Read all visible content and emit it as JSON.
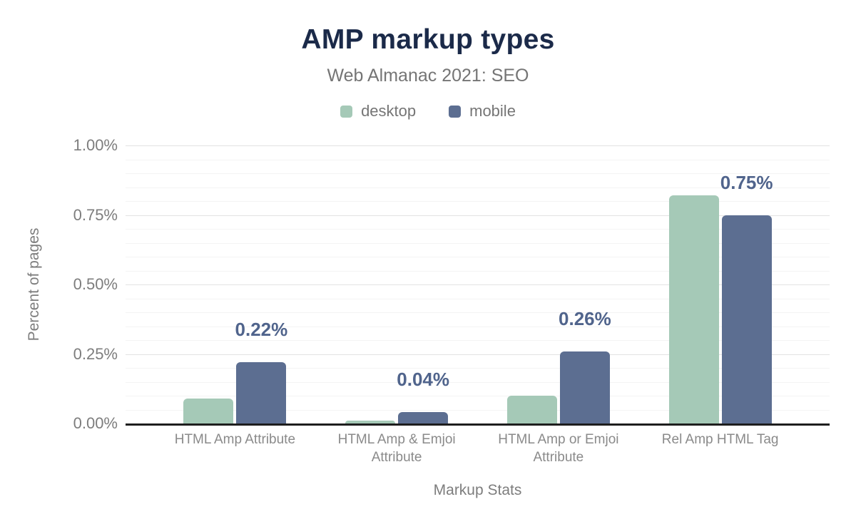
{
  "header": {
    "title": "AMP markup types",
    "subtitle": "Web Almanac 2021: SEO"
  },
  "legend": [
    {
      "label": "desktop",
      "color": "#a5c9b7"
    },
    {
      "label": "mobile",
      "color": "#5c6e91"
    }
  ],
  "colors": {
    "title": "#1b2a49",
    "data_label": "#50648c",
    "axis_line": "#1e1e1e",
    "desktop_bar": "#a5c9b7",
    "mobile_bar": "#5c6e91"
  },
  "chart_data": {
    "type": "bar",
    "title": "AMP markup types",
    "subtitle": "Web Almanac 2021: SEO",
    "categories": [
      "HTML Amp Attribute",
      "HTML Amp & Emjoi Attribute",
      "HTML Amp or Emjoi Attribute",
      "Rel Amp HTML Tag"
    ],
    "series": [
      {
        "name": "desktop",
        "color": "#a5c9b7",
        "values": [
          0.09,
          0.01,
          0.1,
          0.82
        ]
      },
      {
        "name": "mobile",
        "color": "#5c6e91",
        "values": [
          0.22,
          0.04,
          0.26,
          0.75
        ],
        "data_labels": [
          "0.22%",
          "0.04%",
          "0.26%",
          "0.75%"
        ]
      }
    ],
    "xlabel": "Markup Stats",
    "ylabel": "Percent of pages",
    "ylim": [
      0,
      1.0
    ],
    "yticks": [
      {
        "value": 0.0,
        "label": "0.00%"
      },
      {
        "value": 0.25,
        "label": "0.25%"
      },
      {
        "value": 0.5,
        "label": "0.50%"
      },
      {
        "value": 0.75,
        "label": "0.75%"
      },
      {
        "value": 1.0,
        "label": "1.00%"
      }
    ],
    "grid": {
      "major_step": 0.25,
      "minor_step": 0.05,
      "grid_on": true
    },
    "legend_position": "top",
    "data_labels_on_series": "mobile"
  }
}
